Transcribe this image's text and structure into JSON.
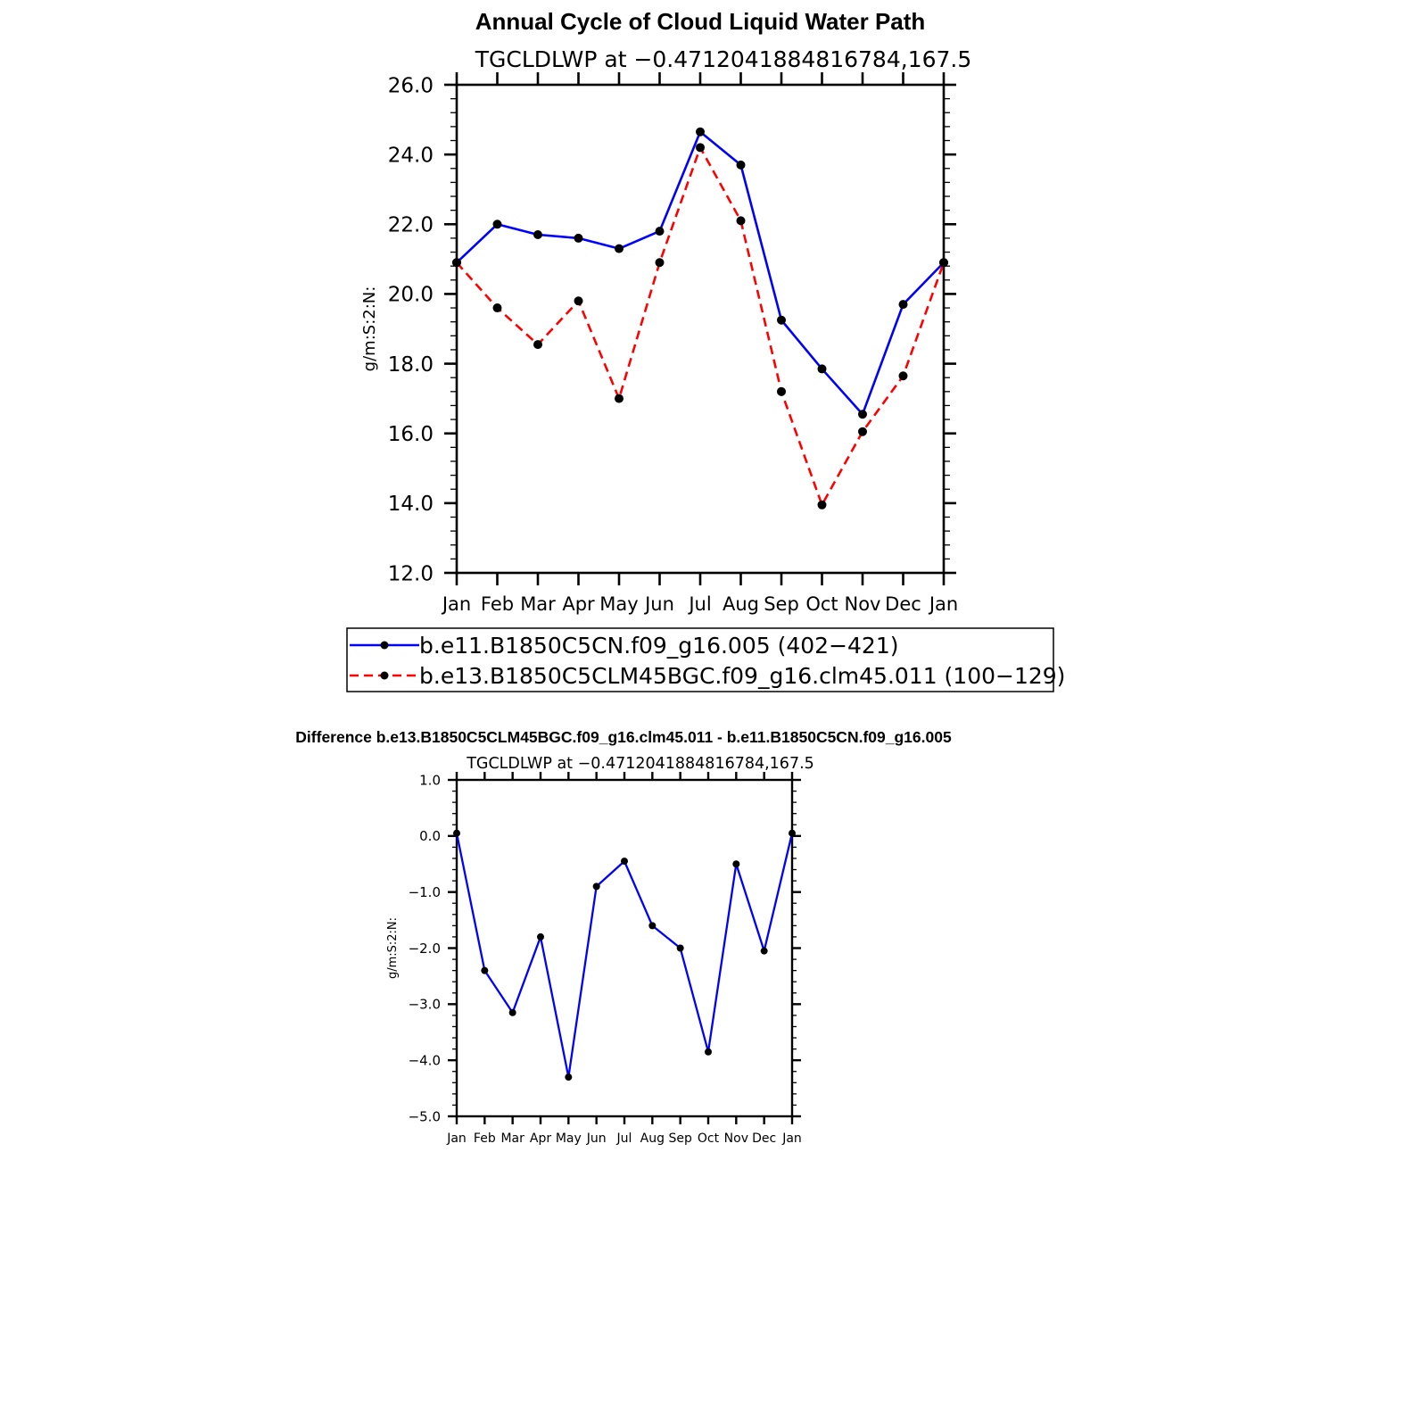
{
  "figure": {
    "title": "Annual Cycle of Cloud Liquid Water Path",
    "diff_title": "Difference b.e13.B1850C5CLM45BGC.f09_g16.clm45.011 - b.e11.B1850C5CN.f09_g16.005"
  },
  "chart_data": [
    {
      "type": "line",
      "subtitle": "TGCLDLWP  at  −0.4712041884816784,167.5",
      "ylabel": "g/m:S:2:N:",
      "xlabel": "",
      "categories": [
        "Jan",
        "Feb",
        "Mar",
        "Apr",
        "May",
        "Jun",
        "Jul",
        "Aug",
        "Sep",
        "Oct",
        "Nov",
        "Dec",
        "Jan"
      ],
      "ylim": [
        12.0,
        26.0
      ],
      "yticks": [
        "12.0",
        "14.0",
        "16.0",
        "18.0",
        "20.0",
        "22.0",
        "24.0",
        "26.0"
      ],
      "ytick_values": [
        12,
        14,
        16,
        18,
        20,
        22,
        24,
        26
      ],
      "grid": false,
      "legend_position": "bottom",
      "series": [
        {
          "name": "b.e11.B1850C5CN.f09_g16.005 (402−421)",
          "color": "#0000ff",
          "dash": "solid",
          "values": [
            20.9,
            22.0,
            21.7,
            21.6,
            21.3,
            21.8,
            24.65,
            23.7,
            19.25,
            17.85,
            16.55,
            19.7,
            20.9
          ]
        },
        {
          "name": "b.e13.B1850C5CLM45BGC.f09_g16.clm45.011 (100−129)",
          "color": "#ff0000",
          "dash": "dashed",
          "values": [
            20.9,
            19.6,
            18.55,
            19.8,
            17.0,
            20.9,
            24.2,
            22.1,
            17.2,
            13.95,
            16.05,
            17.65,
            20.9
          ]
        }
      ]
    },
    {
      "type": "line",
      "subtitle": "TGCLDLWP  at  −0.4712041884816784,167.5",
      "ylabel": "g/m:S:2:N:",
      "xlabel": "",
      "categories": [
        "Jan",
        "Feb",
        "Mar",
        "Apr",
        "May",
        "Jun",
        "Jul",
        "Aug",
        "Sep",
        "Oct",
        "Nov",
        "Dec",
        "Jan"
      ],
      "ylim": [
        -5.0,
        1.0
      ],
      "yticks": [
        "−5.0",
        "−4.0",
        "−3.0",
        "−2.0",
        "−1.0",
        "0.0",
        "1.0"
      ],
      "ytick_values": [
        -5,
        -4,
        -3,
        -2,
        -1,
        0,
        1
      ],
      "grid": false,
      "series": [
        {
          "name": "",
          "color": "#0000ff",
          "dash": "solid",
          "values": [
            0.05,
            -2.4,
            -3.15,
            -1.8,
            -4.3,
            -0.9,
            -0.45,
            -1.6,
            -2.0,
            -3.85,
            -0.5,
            -2.05,
            0.05
          ]
        }
      ]
    }
  ]
}
